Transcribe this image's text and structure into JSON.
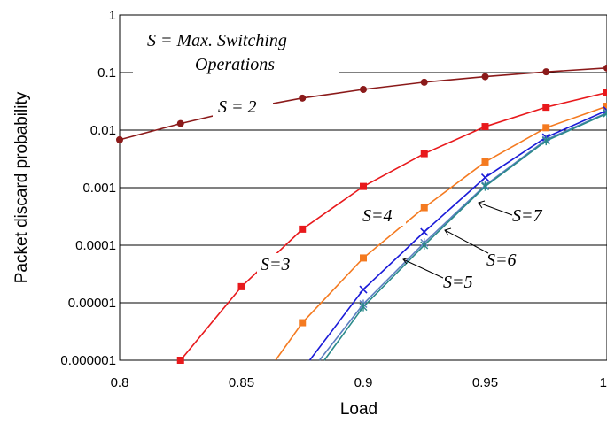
{
  "chart_data": {
    "type": "line",
    "title": "",
    "xlabel": "Load",
    "ylabel": "Packet discard probability",
    "xlim": [
      0.8,
      1.0
    ],
    "ylim": [
      1e-06,
      1
    ],
    "y_scale": "log",
    "grid": "horizontal",
    "x_ticks": [
      "0.8",
      "0.85",
      "0.9",
      "0.95",
      "1"
    ],
    "y_ticks": [
      "1",
      "0.1",
      "0.01",
      "0.001",
      "0.0001",
      "0.00001",
      "0.000001"
    ],
    "annotations": {
      "legend_line1": "S = Max. Switching",
      "legend_line2": "Operations",
      "s2": "S = 2",
      "s3": "S=3",
      "s4": "S=4",
      "s5": "S=5",
      "s6": "S=6",
      "s7": "S=7"
    },
    "series": [
      {
        "key": "s2",
        "color": "#8B1A1A",
        "marker": "circle",
        "x": [
          0.8,
          0.825,
          0.85,
          0.875,
          0.9,
          0.925,
          0.95,
          0.975,
          1.0
        ],
        "y": [
          0.0068,
          0.013,
          0.023,
          0.036,
          0.051,
          0.068,
          0.085,
          0.103,
          0.12
        ]
      },
      {
        "key": "s3",
        "color": "#E8191C",
        "marker": "square",
        "x": [
          0.825,
          0.85,
          0.875,
          0.9,
          0.925,
          0.95,
          0.975,
          1.0
        ],
        "y": [
          1e-06,
          1.9e-05,
          0.00019,
          0.00105,
          0.0039,
          0.0115,
          0.025,
          0.045
        ]
      },
      {
        "key": "s4",
        "color": "#F47A20",
        "marker": "square",
        "x": [
          0.864,
          0.875,
          0.9,
          0.925,
          0.95,
          0.975,
          1.0
        ],
        "y": [
          1e-06,
          4.5e-06,
          6e-05,
          0.00045,
          0.0028,
          0.011,
          0.026
        ]
      },
      {
        "key": "s5",
        "color": "#1A1AD8",
        "marker": "x",
        "x": [
          0.878,
          0.9,
          0.925,
          0.95,
          0.975,
          1.0
        ],
        "y": [
          1e-06,
          1.7e-05,
          0.00017,
          0.0015,
          0.0075,
          0.022
        ]
      },
      {
        "key": "s6",
        "color": "#5B7FC0",
        "marker": "star",
        "x": [
          0.882,
          0.9,
          0.925,
          0.95,
          0.975,
          1.0
        ],
        "y": [
          1e-06,
          9.5e-06,
          0.00011,
          0.0011,
          0.0068,
          0.02
        ]
      },
      {
        "key": "s7",
        "color": "#2A8A8A",
        "marker": "star",
        "x": [
          0.884,
          0.9,
          0.925,
          0.95,
          0.975,
          1.0
        ],
        "y": [
          1e-06,
          8.5e-06,
          0.0001,
          0.00105,
          0.0065,
          0.0195
        ]
      }
    ]
  }
}
